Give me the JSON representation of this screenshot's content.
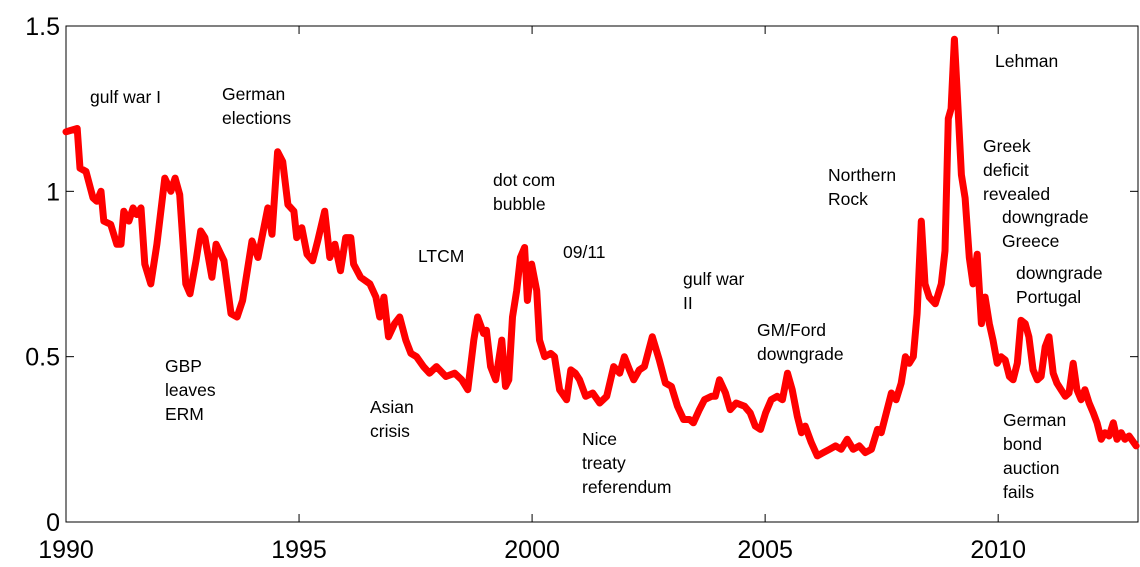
{
  "chart_data": {
    "type": "line",
    "color": "#ff0000",
    "xlim": [
      1990,
      2013
    ],
    "ylim": [
      0,
      1.5
    ],
    "xticks": [
      1990,
      1995,
      2000,
      2005,
      2010
    ],
    "yticks": [
      0,
      {
        "value": 0.5,
        "label": "0.5"
      },
      1,
      1.5
    ],
    "x": [
      1990.0,
      1990.24,
      1990.3,
      1990.43,
      1990.58,
      1990.66,
      1990.75,
      1990.81,
      1990.96,
      1991.09,
      1991.18,
      1991.24,
      1991.35,
      1991.44,
      1991.52,
      1991.61,
      1991.69,
      1991.82,
      1991.95,
      1992.12,
      1992.25,
      1992.34,
      1992.44,
      1992.57,
      1992.66,
      1992.79,
      1992.89,
      1992.98,
      1993.13,
      1993.22,
      1993.39,
      1993.54,
      1993.67,
      1993.79,
      1993.99,
      1994.12,
      1994.33,
      1994.42,
      1994.54,
      1994.65,
      1994.76,
      1994.89,
      1994.95,
      1995.06,
      1995.17,
      1995.29,
      1995.4,
      1995.55,
      1995.66,
      1995.77,
      1995.89,
      1996.0,
      1996.11,
      1996.17,
      1996.32,
      1996.52,
      1996.65,
      1996.73,
      1996.82,
      1996.92,
      1997.05,
      1997.16,
      1997.29,
      1997.4,
      1997.52,
      1997.67,
      1997.8,
      1997.95,
      1998.15,
      1998.34,
      1998.49,
      1998.62,
      1998.75,
      1998.83,
      1998.96,
      1999.02,
      1999.11,
      1999.22,
      1999.35,
      1999.43,
      1999.5,
      1999.58,
      1999.67,
      1999.75,
      1999.84,
      1999.9,
      1999.99,
      2000.1,
      2000.16,
      2000.27,
      2000.4,
      2000.48,
      2000.59,
      2000.74,
      2000.83,
      2000.93,
      2001.02,
      2001.15,
      2001.3,
      2001.45,
      2001.6,
      2001.75,
      2001.88,
      2001.98,
      2002.09,
      2002.18,
      2002.3,
      2002.41,
      2002.58,
      2002.73,
      2002.86,
      2002.99,
      2003.12,
      2003.25,
      2003.38,
      2003.46,
      2003.59,
      2003.7,
      2003.85,
      2003.93,
      2004.02,
      2004.15,
      2004.25,
      2004.38,
      2004.56,
      2004.68,
      2004.79,
      2004.9,
      2005.01,
      2005.13,
      2005.26,
      2005.37,
      2005.48,
      2005.58,
      2005.69,
      2005.78,
      2005.86,
      2005.99,
      2006.12,
      2006.25,
      2006.38,
      2006.51,
      2006.63,
      2006.76,
      2006.89,
      2007.02,
      2007.15,
      2007.28,
      2007.41,
      2007.49,
      2007.6,
      2007.71,
      2007.81,
      2007.92,
      2008.01,
      2008.09,
      2008.18,
      2008.26,
      2008.35,
      2008.43,
      2008.52,
      2008.65,
      2008.78,
      2008.86,
      2008.93,
      2008.99,
      2009.06,
      2009.12,
      2009.21,
      2009.29,
      2009.38,
      2009.46,
      2009.55,
      2009.64,
      2009.72,
      2009.81,
      2009.89,
      2009.98,
      2010.06,
      2010.15,
      2010.24,
      2010.32,
      2010.41,
      2010.49,
      2010.58,
      2010.66,
      2010.75,
      2010.84,
      2010.92,
      2011.01,
      2011.09,
      2011.18,
      2011.26,
      2011.35,
      2011.44,
      2011.52,
      2011.61,
      2011.69,
      2011.78,
      2011.86,
      2011.95,
      2012.04,
      2012.12,
      2012.21,
      2012.29,
      2012.38,
      2012.47,
      2012.55,
      2012.64,
      2012.72,
      2012.81,
      2012.96
    ],
    "values": [
      1.18,
      1.19,
      1.07,
      1.06,
      0.98,
      0.97,
      1.0,
      0.91,
      0.9,
      0.84,
      0.84,
      0.94,
      0.91,
      0.95,
      0.93,
      0.95,
      0.78,
      0.72,
      0.84,
      1.04,
      1.0,
      1.04,
      0.99,
      0.72,
      0.69,
      0.79,
      0.88,
      0.86,
      0.74,
      0.84,
      0.79,
      0.63,
      0.62,
      0.67,
      0.85,
      0.8,
      0.95,
      0.87,
      1.12,
      1.09,
      0.96,
      0.94,
      0.86,
      0.89,
      0.81,
      0.79,
      0.85,
      0.94,
      0.8,
      0.84,
      0.76,
      0.86,
      0.86,
      0.78,
      0.74,
      0.72,
      0.68,
      0.62,
      0.68,
      0.56,
      0.6,
      0.62,
      0.55,
      0.51,
      0.5,
      0.47,
      0.45,
      0.47,
      0.44,
      0.45,
      0.43,
      0.4,
      0.55,
      0.62,
      0.57,
      0.58,
      0.47,
      0.43,
      0.55,
      0.41,
      0.43,
      0.62,
      0.7,
      0.8,
      0.83,
      0.67,
      0.78,
      0.7,
      0.55,
      0.5,
      0.51,
      0.5,
      0.4,
      0.37,
      0.46,
      0.45,
      0.43,
      0.38,
      0.39,
      0.36,
      0.38,
      0.47,
      0.45,
      0.5,
      0.46,
      0.43,
      0.46,
      0.47,
      0.56,
      0.49,
      0.42,
      0.41,
      0.35,
      0.31,
      0.31,
      0.3,
      0.34,
      0.37,
      0.38,
      0.38,
      0.43,
      0.39,
      0.34,
      0.36,
      0.35,
      0.33,
      0.29,
      0.28,
      0.33,
      0.37,
      0.38,
      0.37,
      0.45,
      0.4,
      0.32,
      0.27,
      0.29,
      0.24,
      0.2,
      0.21,
      0.22,
      0.23,
      0.22,
      0.25,
      0.22,
      0.23,
      0.21,
      0.22,
      0.28,
      0.27,
      0.33,
      0.39,
      0.37,
      0.42,
      0.5,
      0.48,
      0.5,
      0.63,
      0.91,
      0.72,
      0.68,
      0.66,
      0.72,
      0.82,
      1.22,
      1.25,
      1.46,
      1.3,
      1.05,
      0.98,
      0.8,
      0.72,
      0.81,
      0.6,
      0.68,
      0.6,
      0.55,
      0.48,
      0.5,
      0.49,
      0.44,
      0.43,
      0.48,
      0.61,
      0.6,
      0.56,
      0.46,
      0.43,
      0.44,
      0.53,
      0.56,
      0.45,
      0.42,
      0.4,
      0.38,
      0.39,
      0.48,
      0.4,
      0.37,
      0.4,
      0.36,
      0.33,
      0.3,
      0.25,
      0.27,
      0.26,
      0.3,
      0.25,
      0.27,
      0.25,
      0.26,
      0.23
    ],
    "annotations": [
      [
        "gulf war I"
      ],
      [
        "German",
        "elections"
      ],
      [
        "GBP",
        "leaves",
        "ERM"
      ],
      [
        "Asian",
        "crisis"
      ],
      [
        "LTCM"
      ],
      [
        "dot com",
        "bubble"
      ],
      [
        "09/11"
      ],
      [
        "gulf war",
        "II"
      ],
      [
        "Nice",
        "treaty",
        "referendum"
      ],
      [
        "GM/Ford",
        "downgrade"
      ],
      [
        "Northern",
        "Rock"
      ],
      [
        "Lehman"
      ],
      [
        "Greek",
        "deficit",
        "revealed"
      ],
      [
        "downgrade",
        "Greece"
      ],
      [
        "downgrade",
        "Portugal"
      ],
      [
        "German",
        "bond",
        "auction",
        "fails"
      ]
    ]
  }
}
